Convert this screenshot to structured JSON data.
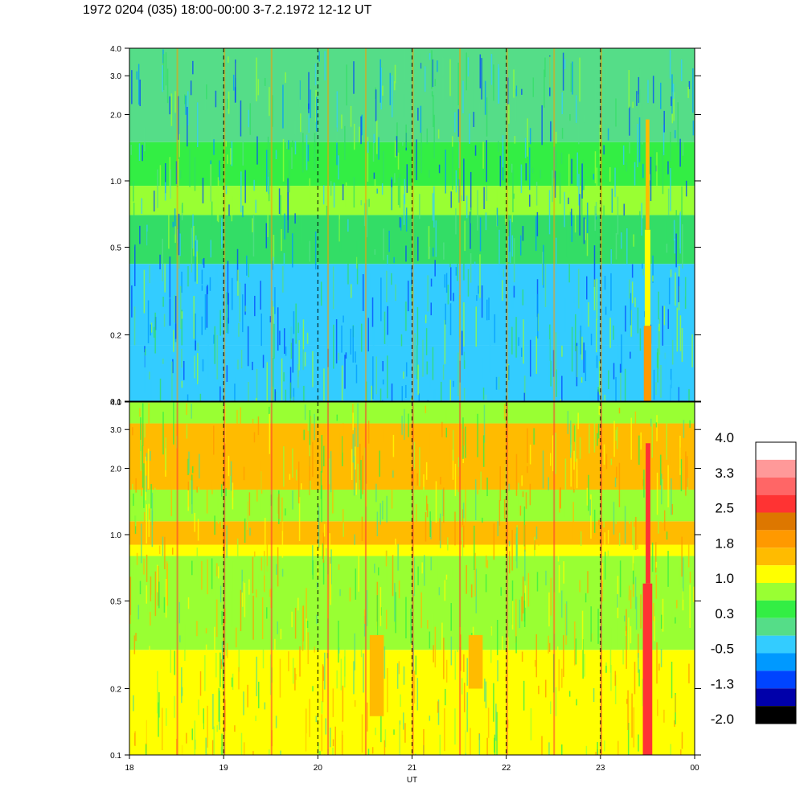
{
  "header": {
    "title": "1972 0204 (035) 18:00-00:00 3-7.2.1972  12-12 UT"
  },
  "chart_data": {
    "type": "heatmap",
    "title": "1972 0204 (035) 18:00-00:00 3-7.2.1972  12-12 UT",
    "xlabel": "UT",
    "x_ticks": [
      "18",
      "19",
      "20",
      "21",
      "22",
      "23",
      "00"
    ],
    "x_range_hours": [
      18,
      24
    ],
    "y_scale": "log",
    "panels": [
      {
        "name": "",
        "ylim": [
          0.1,
          4.0
        ],
        "y_ticks": [
          "0.1",
          "0.2",
          "0.5",
          "1.0",
          "2.0",
          "3.0",
          "4.0"
        ],
        "y_tick_values": [
          0.1,
          0.2,
          0.5,
          1.0,
          2.0,
          3.0,
          4.0
        ],
        "bands": [
          {
            "y_from": 0.1,
            "y_to": 0.18,
            "color": "#33ccff"
          },
          {
            "y_from": 0.18,
            "y_to": 0.42,
            "color": "#33ccff"
          },
          {
            "y_from": 0.42,
            "y_to": 0.7,
            "color": "#33dd66"
          },
          {
            "y_from": 0.7,
            "y_to": 0.95,
            "color": "#99ff33"
          },
          {
            "y_from": 0.95,
            "y_to": 1.5,
            "color": "#33ee44"
          },
          {
            "y_from": 1.5,
            "y_to": 4.0,
            "color": "#55dd88"
          }
        ],
        "bursts": [
          {
            "x": 23.46,
            "x_to": 23.54,
            "y_from": 0.1,
            "y_to": 0.22,
            "color": "#ff9900"
          },
          {
            "x": 23.47,
            "x_to": 23.53,
            "y_from": 0.22,
            "y_to": 0.6,
            "color": "#ffff00"
          },
          {
            "x": 23.48,
            "x_to": 23.52,
            "y_from": 0.6,
            "y_to": 1.9,
            "color": "#ffbb00"
          }
        ],
        "stripes": [
          18.5,
          19.0,
          19.5,
          20.1,
          20.5,
          21.0,
          21.5,
          22.0,
          22.5,
          23.0
        ]
      },
      {
        "name": "",
        "ylim": [
          0.1,
          4.0
        ],
        "y_ticks": [
          "0.1",
          "0.2",
          "0.5",
          "1.0",
          "2.0",
          "3.0",
          "4.0"
        ],
        "y_tick_values": [
          0.1,
          0.2,
          0.5,
          1.0,
          2.0,
          3.0,
          4.0
        ],
        "bands": [
          {
            "y_from": 0.1,
            "y_to": 0.3,
            "color": "#ffff00"
          },
          {
            "y_from": 0.3,
            "y_to": 0.8,
            "color": "#99ff33"
          },
          {
            "y_from": 0.8,
            "y_to": 0.9,
            "color": "#ffff00"
          },
          {
            "y_from": 0.9,
            "y_to": 1.15,
            "color": "#ffbb00"
          },
          {
            "y_from": 1.15,
            "y_to": 1.6,
            "color": "#99ff33"
          },
          {
            "y_from": 1.6,
            "y_to": 3.2,
            "color": "#ffbb00"
          },
          {
            "y_from": 3.2,
            "y_to": 4.0,
            "color": "#99ff33"
          }
        ],
        "bursts": [
          {
            "x": 23.45,
            "x_to": 23.55,
            "y_from": 0.1,
            "y_to": 0.6,
            "color": "#ff3333"
          },
          {
            "x": 23.48,
            "x_to": 23.53,
            "y_from": 0.6,
            "y_to": 2.6,
            "color": "#ff3333"
          },
          {
            "x": 20.55,
            "x_to": 20.7,
            "y_from": 0.15,
            "y_to": 0.35,
            "color": "#ffbb00"
          },
          {
            "x": 21.6,
            "x_to": 21.75,
            "y_from": 0.2,
            "y_to": 0.35,
            "color": "#ffbb00"
          }
        ],
        "stripes": [
          18.5,
          19.0,
          19.5,
          20.1,
          20.5,
          21.0,
          21.5,
          22.0,
          22.5,
          23.0
        ]
      }
    ],
    "dashed_vertical_lines_at": [
      19,
      20,
      21,
      22,
      23
    ],
    "colorbar": {
      "labels": [
        "4.0",
        "3.3",
        "2.5",
        "1.8",
        "1.0",
        "0.3",
        "-0.5",
        "-1.3",
        "-2.0"
      ],
      "colors_top_to_bottom": [
        "#ffffff",
        "#ff9999",
        "#ff6666",
        "#ff3333",
        "#dd7700",
        "#ff9900",
        "#ffbb00",
        "#ffff00",
        "#99ff33",
        "#33ee44",
        "#55dd88",
        "#33ccff",
        "#0099ff",
        "#0044ff",
        "#0000aa",
        "#000000"
      ]
    }
  }
}
